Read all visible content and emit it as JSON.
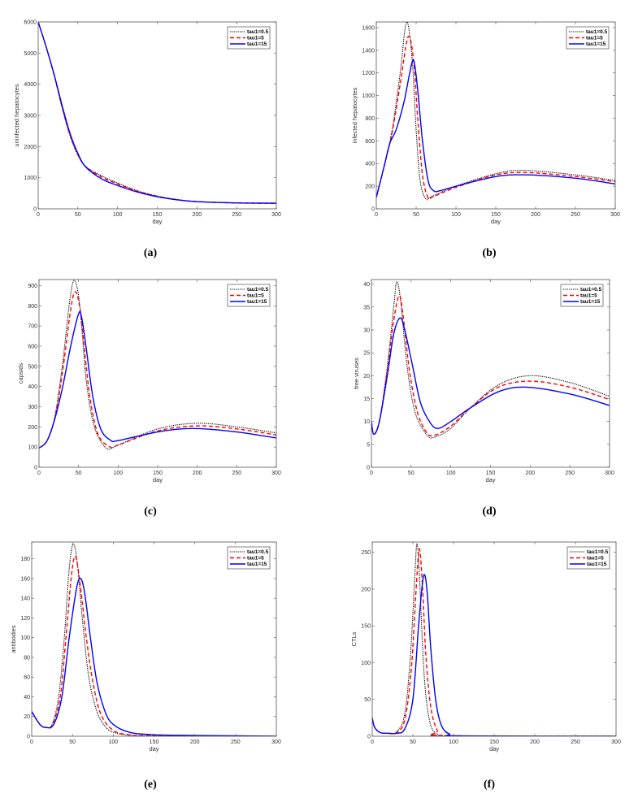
{
  "legend": [
    {
      "name": "tau1=0.5",
      "color": "#000000",
      "style": "dotted"
    },
    {
      "name": "tau1=5",
      "color": "#ff0000",
      "style": "dashed"
    },
    {
      "name": "tau1=15",
      "color": "#0000ff",
      "style": "solid"
    }
  ],
  "chart_data": [
    {
      "id": "a",
      "label": "(a)",
      "type": "line",
      "xlabel": "day",
      "ylabel": "uninfected hepatocytes",
      "xlim": [
        0,
        300
      ],
      "ylim": [
        0,
        6000
      ],
      "xticks": [
        0,
        50,
        100,
        150,
        200,
        250,
        300
      ],
      "yticks": [
        0,
        1000,
        2000,
        3000,
        4000,
        5000,
        6000
      ],
      "legend_position": "top-right",
      "grid": false,
      "series": [
        {
          "name": "tau1=0.5",
          "x": [
            0,
            10,
            20,
            30,
            40,
            50,
            60,
            80,
            100,
            125,
            150,
            175,
            200,
            250,
            300
          ],
          "y": [
            6000,
            5200,
            4300,
            3250,
            2350,
            1720,
            1360,
            1060,
            830,
            580,
            410,
            300,
            235,
            190,
            175
          ]
        },
        {
          "name": "tau1=5",
          "x": [
            0,
            10,
            20,
            30,
            40,
            50,
            60,
            80,
            100,
            125,
            150,
            175,
            200,
            250,
            300
          ],
          "y": [
            6000,
            5200,
            4300,
            3280,
            2380,
            1740,
            1350,
            1020,
            800,
            570,
            405,
            295,
            232,
            188,
            175
          ]
        },
        {
          "name": "tau1=15",
          "x": [
            0,
            10,
            20,
            30,
            40,
            50,
            60,
            80,
            100,
            125,
            150,
            175,
            200,
            250,
            300
          ],
          "y": [
            6000,
            5200,
            4320,
            3330,
            2430,
            1780,
            1340,
            960,
            750,
            540,
            390,
            290,
            230,
            190,
            185
          ]
        }
      ]
    },
    {
      "id": "b",
      "label": "(b)",
      "type": "line",
      "xlabel": "day",
      "ylabel": "infected hepatocytes",
      "xlim": [
        0,
        300
      ],
      "ylim": [
        0,
        1650
      ],
      "xticks": [
        0,
        50,
        100,
        150,
        200,
        250,
        300
      ],
      "yticks": [
        0,
        200,
        400,
        600,
        800,
        1000,
        1200,
        1400,
        1600
      ],
      "legend_position": "top-right",
      "grid": false,
      "series": [
        {
          "name": "tau1=0.5",
          "x": [
            0,
            10,
            20,
            30,
            38,
            45,
            50,
            55,
            62,
            70,
            100,
            150,
            185,
            250,
            300
          ],
          "y": [
            100,
            380,
            700,
            1200,
            1650,
            1320,
            700,
            250,
            90,
            110,
            200,
            310,
            340,
            300,
            250
          ]
        },
        {
          "name": "tau1=5",
          "x": [
            0,
            10,
            20,
            30,
            40,
            47,
            52,
            58,
            65,
            72,
            100,
            150,
            190,
            250,
            300
          ],
          "y": [
            100,
            380,
            680,
            1100,
            1520,
            1300,
            800,
            300,
            100,
            110,
            190,
            300,
            320,
            285,
            240
          ]
        },
        {
          "name": "tau1=15",
          "x": [
            0,
            10,
            17,
            25,
            35,
            42,
            47,
            52,
            58,
            65,
            72,
            80,
            100,
            150,
            190,
            250,
            300
          ],
          "y": [
            100,
            380,
            580,
            700,
            950,
            1200,
            1310,
            1050,
            600,
            250,
            160,
            160,
            200,
            285,
            300,
            270,
            220
          ]
        }
      ]
    },
    {
      "id": "c",
      "label": "(c)",
      "type": "line",
      "xlabel": "day",
      "ylabel": "capsids",
      "xlim": [
        0,
        300
      ],
      "ylim": [
        0,
        930
      ],
      "xticks": [
        0,
        50,
        100,
        150,
        200,
        250,
        300
      ],
      "yticks": [
        0,
        100,
        200,
        300,
        400,
        500,
        600,
        700,
        800,
        900
      ],
      "legend_position": "top-right",
      "grid": false,
      "series": [
        {
          "name": "tau1=0.5",
          "x": [
            0,
            10,
            20,
            30,
            38,
            44,
            50,
            55,
            60,
            70,
            85,
            100,
            150,
            200,
            250,
            300
          ],
          "y": [
            95,
            130,
            250,
            520,
            800,
            925,
            850,
            650,
            420,
            200,
            95,
            110,
            190,
            218,
            200,
            170
          ]
        },
        {
          "name": "tau1=5",
          "x": [
            0,
            10,
            20,
            30,
            40,
            46,
            52,
            58,
            65,
            75,
            90,
            100,
            150,
            200,
            250,
            300
          ],
          "y": [
            95,
            130,
            245,
            480,
            780,
            870,
            780,
            560,
            330,
            160,
            100,
            110,
            180,
            205,
            190,
            160
          ]
        },
        {
          "name": "tau1=15",
          "x": [
            0,
            10,
            20,
            30,
            40,
            50,
            54,
            60,
            68,
            78,
            90,
            100,
            150,
            195,
            250,
            300
          ],
          "y": [
            95,
            130,
            240,
            400,
            600,
            760,
            740,
            580,
            350,
            190,
            135,
            132,
            175,
            192,
            175,
            145
          ]
        }
      ]
    },
    {
      "id": "d",
      "label": "(d)",
      "type": "line",
      "xlabel": "day",
      "ylabel": "free viruses",
      "xlim": [
        0,
        300
      ],
      "ylim": [
        0,
        41
      ],
      "xticks": [
        0,
        50,
        100,
        150,
        200,
        250,
        300
      ],
      "yticks": [
        0,
        5,
        10,
        15,
        20,
        25,
        30,
        35,
        40
      ],
      "legend_position": "top-right",
      "grid": false,
      "series": [
        {
          "name": "tau1=0.5",
          "x": [
            0,
            3,
            10,
            20,
            28,
            32,
            37,
            45,
            55,
            70,
            80,
            100,
            125,
            160,
            200,
            250,
            300
          ],
          "y": [
            10,
            7.2,
            10,
            22,
            35,
            40.5,
            36,
            22,
            12,
            7,
            6.6,
            8.5,
            13,
            18,
            20,
            18.5,
            15.5
          ]
        },
        {
          "name": "tau1=5",
          "x": [
            0,
            3,
            10,
            20,
            28,
            35,
            40,
            48,
            58,
            70,
            80,
            100,
            125,
            160,
            200,
            250,
            300
          ],
          "y": [
            10,
            7.2,
            10,
            21,
            32,
            37.5,
            33,
            21,
            12,
            7.5,
            7,
            9,
            13,
            17.5,
            18.8,
            17.5,
            14.8
          ]
        },
        {
          "name": "tau1=15",
          "x": [
            0,
            3,
            10,
            20,
            28,
            36,
            42,
            52,
            62,
            75,
            85,
            100,
            125,
            160,
            195,
            250,
            300
          ],
          "y": [
            10,
            7.2,
            10,
            20,
            29,
            32.6,
            30,
            22,
            14,
            9.5,
            8.5,
            10,
            13,
            16.5,
            17.5,
            16,
            13.5
          ]
        }
      ]
    },
    {
      "id": "e",
      "label": "(e)",
      "type": "line",
      "xlabel": "day",
      "ylabel": "antibodies",
      "xlim": [
        0,
        300
      ],
      "ylim": [
        0,
        197
      ],
      "xticks": [
        0,
        50,
        100,
        150,
        200,
        250,
        300
      ],
      "yticks": [
        0,
        20,
        40,
        60,
        80,
        100,
        120,
        140,
        160,
        180
      ],
      "legend_position": "top-right",
      "grid": false,
      "series": [
        {
          "name": "tau1=0.5",
          "x": [
            0,
            10,
            17,
            25,
            33,
            40,
            46,
            51,
            56,
            62,
            70,
            80,
            90,
            100,
            120,
            150,
            300
          ],
          "y": [
            25,
            12,
            9,
            12,
            40,
            100,
            170,
            195,
            175,
            120,
            60,
            25,
            10,
            4,
            1,
            0.3,
            0
          ]
        },
        {
          "name": "tau1=5",
          "x": [
            0,
            10,
            17,
            25,
            35,
            42,
            49,
            54,
            60,
            67,
            75,
            85,
            100,
            120,
            150,
            300
          ],
          "y": [
            25,
            12,
            9,
            11,
            40,
            100,
            165,
            182,
            150,
            100,
            55,
            22,
            6,
            1.5,
            0.5,
            0
          ]
        },
        {
          "name": "tau1=15",
          "x": [
            0,
            10,
            17,
            27,
            37,
            46,
            55,
            60,
            65,
            72,
            80,
            90,
            100,
            120,
            150,
            200,
            300
          ],
          "y": [
            25,
            12,
            9,
            12,
            40,
            100,
            150,
            160,
            145,
            100,
            55,
            25,
            12,
            4,
            1.5,
            0.8,
            0
          ]
        }
      ]
    },
    {
      "id": "f",
      "label": "(f)",
      "type": "line",
      "xlabel": "day",
      "ylabel": "CTLs",
      "xlim": [
        0,
        300
      ],
      "ylim": [
        0,
        264
      ],
      "xticks": [
        0,
        50,
        100,
        150,
        200,
        250,
        300
      ],
      "yticks": [
        0,
        50,
        100,
        150,
        200,
        250
      ],
      "legend_position": "top-right",
      "grid": false,
      "series": [
        {
          "name": "tau1=0.5",
          "x": [
            0,
            3,
            10,
            20,
            30,
            40,
            47,
            52,
            55,
            58,
            62,
            66,
            72,
            80,
            90,
            300
          ],
          "y": [
            25,
            12,
            5,
            4,
            6,
            30,
            110,
            210,
            262,
            220,
            120,
            55,
            15,
            3,
            0.5,
            0
          ]
        },
        {
          "name": "tau1=5",
          "x": [
            0,
            3,
            10,
            20,
            30,
            40,
            48,
            54,
            58,
            62,
            66,
            72,
            80,
            90,
            300
          ],
          "y": [
            25,
            12,
            5,
            4,
            5,
            22,
            90,
            200,
            255,
            200,
            110,
            40,
            8,
            1,
            0
          ]
        },
        {
          "name": "tau1=15",
          "x": [
            0,
            3,
            10,
            20,
            30,
            40,
            50,
            57,
            62,
            65,
            68,
            72,
            78,
            85,
            95,
            110,
            300
          ],
          "y": [
            25,
            12,
            5,
            4,
            4,
            10,
            50,
            150,
            210,
            218,
            190,
            120,
            50,
            15,
            3,
            0.5,
            0
          ]
        }
      ]
    }
  ]
}
